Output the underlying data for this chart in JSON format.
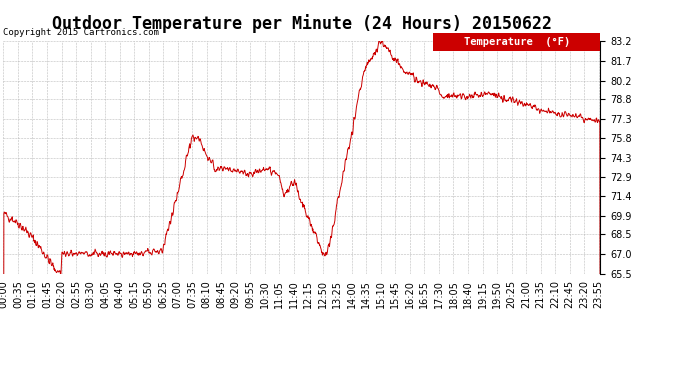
{
  "title": "Outdoor Temperature per Minute (24 Hours) 20150622",
  "copyright_text": "Copyright 2015 Cartronics.com",
  "legend_label": "Temperature  (°F)",
  "y_ticks": [
    65.5,
    67.0,
    68.5,
    69.9,
    71.4,
    72.9,
    74.3,
    75.8,
    77.3,
    78.8,
    80.2,
    81.7,
    83.2
  ],
  "y_min": 65.5,
  "y_max": 83.2,
  "line_color": "#cc0000",
  "background_color": "#ffffff",
  "plot_bg_color": "#ffffff",
  "title_fontsize": 12,
  "copyright_fontsize": 6.5,
  "axis_fontsize": 7,
  "legend_bg_color": "#cc0000",
  "legend_text_color": "#ffffff",
  "legend_fontsize": 7.5,
  "grid_color": "#aaaaaa",
  "tick_interval_min": 35
}
